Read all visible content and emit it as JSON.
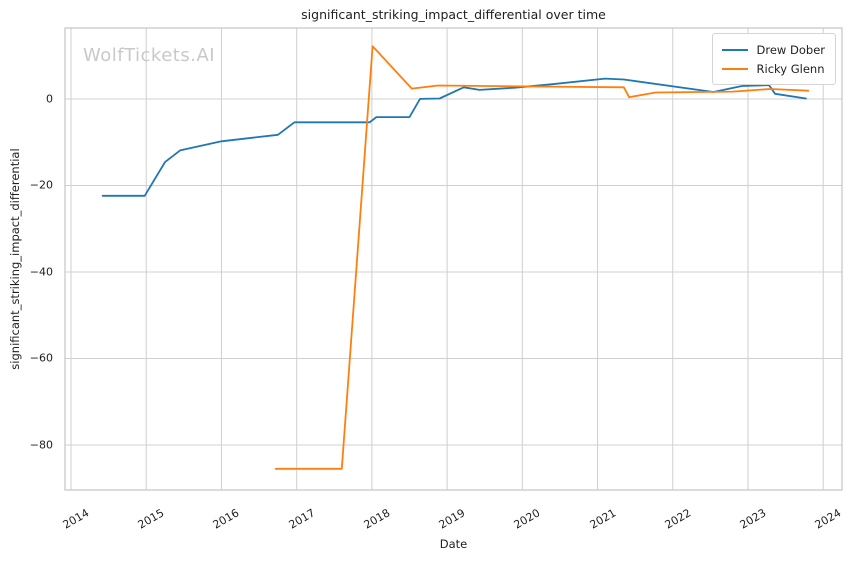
{
  "chart_data": {
    "type": "line",
    "title": "significant_striking_impact_differential over time",
    "xlabel": "Date",
    "ylabel": "significant_striking_impact_differential",
    "watermark": "WolfTickets.AI",
    "grid": true,
    "legend_position": "upper right",
    "xlim": [
      2013.92,
      2024.25
    ],
    "ylim": [
      -90.4,
      16.4
    ],
    "x_ticks": [
      2014,
      2015,
      2016,
      2017,
      2018,
      2019,
      2020,
      2021,
      2022,
      2023,
      2024
    ],
    "y_ticks": [
      0,
      -20,
      -40,
      -60,
      -80
    ],
    "axis_colors": {
      "grid": "#d0d0d0",
      "spine": "#c4c4c4",
      "text": "#1f1f1f",
      "watermark": "#c9c9c9"
    },
    "series": [
      {
        "name": "Drew Dober",
        "color": "#1f77b4",
        "points": [
          [
            2014.42,
            -22.4
          ],
          [
            2014.98,
            -22.4
          ],
          [
            2015.25,
            -14.6
          ],
          [
            2015.45,
            -11.9
          ],
          [
            2016.0,
            -9.8
          ],
          [
            2016.45,
            -8.9
          ],
          [
            2016.75,
            -8.3
          ],
          [
            2016.97,
            -5.4
          ],
          [
            2017.97,
            -5.4
          ],
          [
            2018.06,
            -4.2
          ],
          [
            2018.5,
            -4.2
          ],
          [
            2018.64,
            0.0
          ],
          [
            2018.9,
            0.1
          ],
          [
            2019.22,
            2.7
          ],
          [
            2019.43,
            2.1
          ],
          [
            2019.9,
            2.6
          ],
          [
            2020.4,
            3.4
          ],
          [
            2021.1,
            4.7
          ],
          [
            2021.35,
            4.5
          ],
          [
            2022.54,
            1.6
          ],
          [
            2022.92,
            3.0
          ],
          [
            2023.28,
            3.2
          ],
          [
            2023.36,
            1.2
          ],
          [
            2023.77,
            0.1
          ]
        ]
      },
      {
        "name": "Ricky Glenn",
        "color": "#ff7f0e",
        "points": [
          [
            2016.72,
            -85.5
          ],
          [
            2017.6,
            -85.5
          ],
          [
            2018.01,
            12.2
          ],
          [
            2018.53,
            2.4
          ],
          [
            2018.88,
            3.1
          ],
          [
            2020.0,
            2.9
          ],
          [
            2021.35,
            2.7
          ],
          [
            2021.42,
            0.4
          ],
          [
            2021.77,
            1.5
          ],
          [
            2022.8,
            1.7
          ],
          [
            2023.3,
            2.3
          ],
          [
            2023.8,
            1.9
          ]
        ]
      }
    ]
  }
}
